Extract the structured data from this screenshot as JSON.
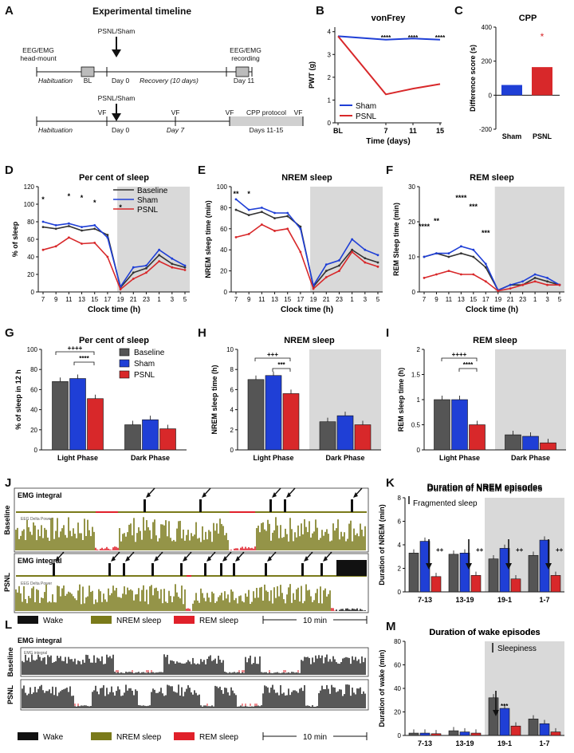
{
  "figure": {
    "panel_letters": [
      "A",
      "B",
      "C",
      "D",
      "E",
      "F",
      "G",
      "H",
      "I",
      "J",
      "K",
      "L",
      "M"
    ],
    "colors": {
      "baseline": "#333333",
      "sham": "#1f3fd6",
      "psnl": "#d8282a",
      "shade": "#d9d9d9",
      "wake": "#111111",
      "nrem": "#7a7a1a",
      "rem": "#e0202a"
    }
  },
  "panel_a": {
    "title": "Experimental timeline",
    "line1": {
      "eegemg_headmount_1": "EEG/EMG",
      "eegemg_headmount_2": "head-mount",
      "psnl_sham": "PSNL/Sham",
      "eegemg_rec_1": "EEG/EMG",
      "eegemg_rec_2": "recording",
      "habituation": "Habituation",
      "bl": "BL",
      "day0": "Day 0",
      "recovery": "Recovery (10 days)",
      "day11": "Day 11"
    },
    "line2": {
      "psnl_sham": "PSNL/Sham",
      "vf": "VF",
      "habituation": "Habituation",
      "day0": "Day 0",
      "day7": "Day 7",
      "cpp_protocol": "CPP protocol",
      "days": "Days 11-15"
    }
  },
  "chart_data": [
    {
      "panel": "B",
      "type": "line",
      "title": "vonFrey",
      "xlabel": "Time (days)",
      "ylabel": "PWT (g)",
      "categories": [
        "BL",
        "7",
        "11",
        "15"
      ],
      "yticks": [
        0,
        1,
        2,
        3,
        4
      ],
      "ylim": [
        0,
        4.2
      ],
      "series": [
        {
          "name": "Sham",
          "values": [
            3.8,
            3.65,
            3.7,
            3.65
          ]
        },
        {
          "name": "PSNL",
          "values": [
            3.8,
            1.25,
            1.5,
            1.7
          ]
        }
      ],
      "annotations": [
        "****",
        "****",
        "****"
      ]
    },
    {
      "panel": "C",
      "type": "bar",
      "title": "CPP",
      "ylabel": "Difference score (s)",
      "categories": [
        "Sham",
        "PSNL"
      ],
      "values": [
        60,
        165
      ],
      "yticks": [
        -200,
        0,
        200,
        400
      ],
      "ylim": [
        -200,
        400
      ],
      "annotations": [
        "*"
      ]
    },
    {
      "panel": "D",
      "type": "line",
      "title": "Per cent of sleep",
      "xlabel": "Clock time (h)",
      "ylabel": "% of sleep",
      "xticks": [
        "7",
        "9",
        "11",
        "13",
        "15",
        "17",
        "19",
        "21",
        "23",
        "1",
        "3",
        "5"
      ],
      "yticks": [
        0,
        20,
        40,
        60,
        80,
        100,
        120
      ],
      "ylim": [
        0,
        120
      ],
      "series": [
        {
          "name": "Baseline",
          "values": [
            74,
            72,
            75,
            70,
            72,
            65,
            5,
            22,
            27,
            42,
            32,
            28
          ]
        },
        {
          "name": "Sham",
          "values": [
            80,
            76,
            78,
            74,
            76,
            62,
            6,
            28,
            30,
            48,
            38,
            30
          ]
        },
        {
          "name": "PSNL",
          "values": [
            48,
            52,
            62,
            55,
            56,
            40,
            3,
            15,
            22,
            35,
            28,
            25
          ]
        }
      ],
      "annotations": [
        "*",
        "*",
        "*",
        "*",
        "*"
      ]
    },
    {
      "panel": "E",
      "type": "line",
      "title": "NREM sleep",
      "xlabel": "Clock time (h)",
      "ylabel": "NREM sleep time (min)",
      "xticks": [
        "7",
        "9",
        "11",
        "13",
        "15",
        "17",
        "19",
        "21",
        "23",
        "1",
        "3",
        "5"
      ],
      "yticks": [
        0,
        20,
        40,
        60,
        80,
        100
      ],
      "ylim": [
        0,
        100
      ],
      "series": [
        {
          "name": "Baseline",
          "values": [
            78,
            73,
            76,
            70,
            72,
            62,
            5,
            20,
            25,
            40,
            32,
            28
          ]
        },
        {
          "name": "Sham",
          "values": [
            88,
            78,
            80,
            75,
            75,
            60,
            6,
            26,
            30,
            50,
            40,
            35
          ]
        },
        {
          "name": "PSNL",
          "values": [
            52,
            55,
            64,
            58,
            60,
            38,
            3,
            14,
            20,
            38,
            28,
            24
          ]
        }
      ],
      "annotations": [
        "**",
        "*"
      ]
    },
    {
      "panel": "F",
      "type": "line",
      "title": "REM sleep",
      "xlabel": "Clock time (h)",
      "ylabel": "REM Sleep time (min)",
      "xticks": [
        "7",
        "9",
        "11",
        "13",
        "15",
        "17",
        "19",
        "21",
        "23",
        "1",
        "3",
        "5"
      ],
      "yticks": [
        0,
        10,
        20,
        30
      ],
      "ylim": [
        0,
        30
      ],
      "series": [
        {
          "name": "Baseline",
          "values": [
            10,
            11,
            10,
            11,
            10,
            7,
            0.5,
            2,
            2,
            4,
            3,
            2
          ]
        },
        {
          "name": "Sham",
          "values": [
            10,
            11,
            11,
            13,
            12,
            8,
            0.5,
            2,
            3,
            5,
            4,
            2
          ]
        },
        {
          "name": "PSNL",
          "values": [
            4,
            5,
            6,
            5,
            5,
            3,
            0.3,
            1,
            2,
            3,
            2,
            2
          ]
        }
      ],
      "annotations": [
        "****",
        "**",
        "****",
        "***",
        "***"
      ]
    },
    {
      "panel": "G",
      "type": "bar",
      "title": "Per cent of sleep",
      "ylabel": "% of sleep in 12 h",
      "categories": [
        "Light Phase",
        "Dark Phase"
      ],
      "yticks": [
        0,
        20,
        40,
        60,
        80,
        100
      ],
      "ylim": [
        0,
        100
      ],
      "series": [
        {
          "name": "Baseline",
          "values": [
            68,
            25
          ]
        },
        {
          "name": "Sham",
          "values": [
            71,
            30
          ]
        },
        {
          "name": "PSNL",
          "values": [
            51,
            21
          ]
        }
      ],
      "annotations": [
        "++++",
        "****"
      ]
    },
    {
      "panel": "H",
      "type": "bar",
      "title": "NREM sleep",
      "ylabel": "NREM sleep time (h)",
      "categories": [
        "Light Phase",
        "Dark Phase"
      ],
      "yticks": [
        0,
        2,
        4,
        6,
        8,
        10
      ],
      "ylim": [
        0,
        10
      ],
      "series": [
        {
          "name": "Baseline",
          "values": [
            7.0,
            2.8
          ]
        },
        {
          "name": "Sham",
          "values": [
            7.4,
            3.4
          ]
        },
        {
          "name": "PSNL",
          "values": [
            5.6,
            2.5
          ]
        }
      ],
      "annotations": [
        "+++",
        "***"
      ]
    },
    {
      "panel": "I",
      "type": "bar",
      "title": "REM sleep",
      "ylabel": "REM sleep time (h)",
      "categories": [
        "Light Phase",
        "Dark Phase"
      ],
      "yticks": [
        0.0,
        0.5,
        1.0,
        1.5,
        2.0
      ],
      "ylim": [
        0,
        2.0
      ],
      "series": [
        {
          "name": "Baseline",
          "values": [
            1.0,
            0.3
          ]
        },
        {
          "name": "Sham",
          "values": [
            1.0,
            0.27
          ]
        },
        {
          "name": "PSNL",
          "values": [
            0.5,
            0.14
          ]
        }
      ],
      "annotations": [
        "++++",
        "****"
      ]
    },
    {
      "panel": "K",
      "type": "bar",
      "title": "Duration of NREM episodes",
      "ylabel": "Duration of NREM (min)",
      "categories": [
        "7-13",
        "13-19",
        "19-1",
        "1-7"
      ],
      "yticks": [
        0,
        2,
        4,
        6,
        8
      ],
      "ylim": [
        0,
        8
      ],
      "series": [
        {
          "name": "Baseline",
          "values": [
            3.3,
            3.2,
            2.8,
            3.1
          ]
        },
        {
          "name": "Sham",
          "values": [
            4.3,
            3.3,
            3.7,
            4.4
          ]
        },
        {
          "name": "PSNL",
          "values": [
            1.3,
            1.4,
            1.1,
            1.4
          ]
        }
      ],
      "annotations": [
        "++",
        "++",
        "++",
        "++"
      ],
      "note": "Fragmented sleep"
    },
    {
      "panel": "M",
      "type": "bar",
      "title": "Duration of wake episodes",
      "ylabel": "Duration of wake (min)",
      "categories": [
        "7-13",
        "13-19",
        "19-1",
        "1-7"
      ],
      "yticks": [
        0,
        20,
        40,
        60,
        80
      ],
      "ylim": [
        0,
        80
      ],
      "series": [
        {
          "name": "Baseline",
          "values": [
            2,
            4,
            32,
            14
          ]
        },
        {
          "name": "Sham",
          "values": [
            2,
            3,
            23,
            10
          ]
        },
        {
          "name": "PSNL",
          "values": [
            1.5,
            2,
            8,
            3
          ]
        }
      ],
      "annotations": [
        "***"
      ],
      "note": "Sleepiness"
    }
  ],
  "legend_dg": {
    "baseline": "Baseline",
    "sham": "Sham",
    "psnl": "PSNL"
  },
  "panel_j": {
    "emg_label": "EMG integral",
    "baseline_label": "Baseline",
    "psnl_label": "PSNL",
    "trace_small": "EEG Delta Power",
    "legend": {
      "wake": "Wake",
      "nrem": "NREM sleep",
      "rem": "REM sleep"
    },
    "scale": "10 min"
  },
  "panel_l": {
    "emg_label": "EMG integral",
    "baseline_label": "Baseline",
    "psnl_label": "PSNL",
    "trace_small": "EMG integral",
    "legend": {
      "wake": "Wake",
      "nrem": "NREM sleep",
      "rem": "REM sleep"
    },
    "scale": "10 min"
  }
}
